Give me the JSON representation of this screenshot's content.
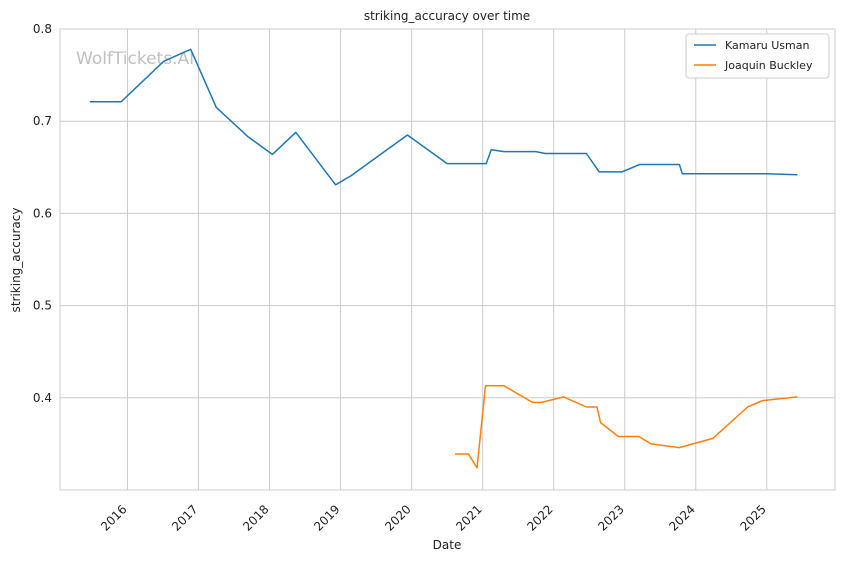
{
  "chart_data": {
    "type": "line",
    "title": "striking_accuracy over time",
    "xlabel": "Date",
    "ylabel": "striking_accuracy",
    "watermark": "WolfTickets.AI",
    "x_tick_labels": [
      "2016",
      "2017",
      "2018",
      "2019",
      "2020",
      "2021",
      "2022",
      "2023",
      "2024",
      "2025"
    ],
    "y_tick_labels": [
      "0.4",
      "0.5",
      "0.6",
      "0.7",
      "0.8"
    ],
    "x_tick_values": [
      2016,
      2017,
      2018,
      2019,
      2020,
      2021,
      2022,
      2023,
      2024,
      2025
    ],
    "y_tick_values": [
      0.4,
      0.5,
      0.6,
      0.7,
      0.8
    ],
    "xlim": [
      2015.05,
      2025.96
    ],
    "ylim": [
      0.3,
      0.8
    ],
    "grid": true,
    "legend_position": "top-right",
    "series": [
      {
        "name": "Kamaru Usman",
        "color": "#1f77b4",
        "points": [
          [
            2015.47,
            0.721
          ],
          [
            2015.91,
            0.721
          ],
          [
            2016.51,
            0.765
          ],
          [
            2016.89,
            0.778
          ],
          [
            2017.25,
            0.715
          ],
          [
            2017.7,
            0.683
          ],
          [
            2018.04,
            0.664
          ],
          [
            2018.37,
            0.688
          ],
          [
            2018.93,
            0.631
          ],
          [
            2019.15,
            0.641
          ],
          [
            2019.94,
            0.685
          ],
          [
            2020.5,
            0.654
          ],
          [
            2021.05,
            0.654
          ],
          [
            2021.12,
            0.669
          ],
          [
            2021.3,
            0.667
          ],
          [
            2021.75,
            0.667
          ],
          [
            2021.88,
            0.665
          ],
          [
            2022.46,
            0.665
          ],
          [
            2022.64,
            0.645
          ],
          [
            2022.96,
            0.645
          ],
          [
            2023.21,
            0.653
          ],
          [
            2023.77,
            0.653
          ],
          [
            2023.81,
            0.643
          ],
          [
            2024.99,
            0.643
          ],
          [
            2025.43,
            0.642
          ]
        ]
      },
      {
        "name": "Joaquin Buckley",
        "color": "#ff7f0e",
        "points": [
          [
            2020.61,
            0.339
          ],
          [
            2020.8,
            0.339
          ],
          [
            2020.92,
            0.324
          ],
          [
            2021.04,
            0.413
          ],
          [
            2021.3,
            0.413
          ],
          [
            2021.7,
            0.395
          ],
          [
            2021.83,
            0.395
          ],
          [
            2022.14,
            0.401
          ],
          [
            2022.46,
            0.39
          ],
          [
            2022.61,
            0.39
          ],
          [
            2022.66,
            0.373
          ],
          [
            2022.91,
            0.358
          ],
          [
            2023.2,
            0.358
          ],
          [
            2023.37,
            0.35
          ],
          [
            2023.77,
            0.346
          ],
          [
            2024.24,
            0.356
          ],
          [
            2024.73,
            0.39
          ],
          [
            2024.94,
            0.397
          ],
          [
            2025.43,
            0.401
          ]
        ]
      }
    ]
  }
}
